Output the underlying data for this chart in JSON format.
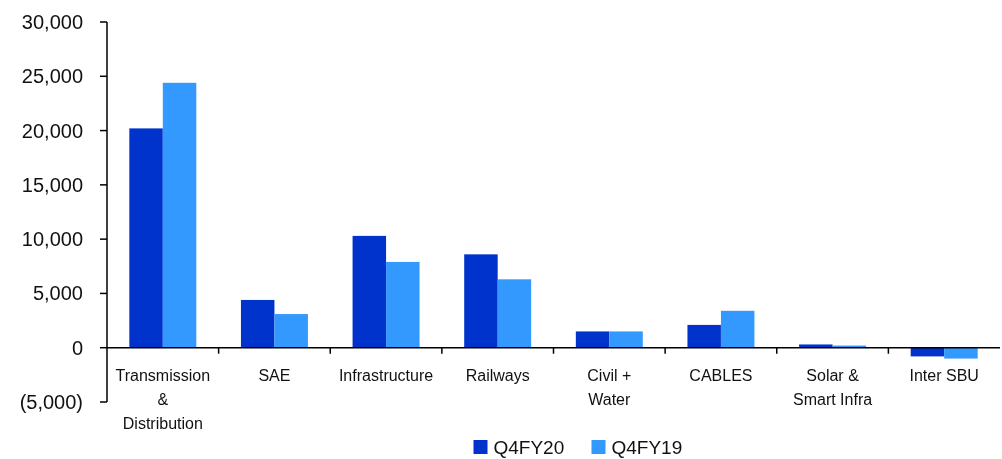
{
  "chart_data": {
    "type": "bar",
    "categories": [
      "Transmission & Distribution",
      "SAE",
      "Infrastructure",
      "Railways",
      "Civil + Water",
      "CABLES",
      "Solar & Smart Infra",
      "Inter SBU"
    ],
    "series": [
      {
        "name": "Q4FY20",
        "color": "#0033cc",
        "values": [
          20200,
          4400,
          10300,
          8600,
          1500,
          2100,
          300,
          -800
        ]
      },
      {
        "name": "Q4FY19",
        "color": "#3399ff",
        "values": [
          24400,
          3100,
          7900,
          6300,
          1500,
          3400,
          200,
          -1000
        ]
      }
    ],
    "ylim": [
      -5000,
      30000
    ],
    "yticks": [
      {
        "value": -5000,
        "label": "(5,000)"
      },
      {
        "value": 0,
        "label": "0"
      },
      {
        "value": 5000,
        "label": "5,000"
      },
      {
        "value": 10000,
        "label": "10,000"
      },
      {
        "value": 15000,
        "label": "15,000"
      },
      {
        "value": 20000,
        "label": "20,000"
      },
      {
        "value": 25000,
        "label": "25,000"
      },
      {
        "value": 30000,
        "label": "30,000"
      }
    ],
    "grid": false,
    "legend": "bottom"
  }
}
